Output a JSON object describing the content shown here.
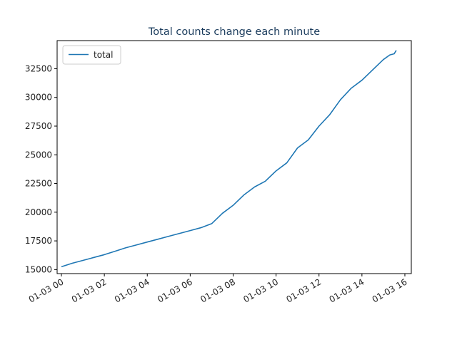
{
  "chart_data": {
    "type": "line",
    "title": "Total counts change each minute",
    "xlabel": "",
    "ylabel": "",
    "legend_position": "upper-left",
    "grid": false,
    "x_tick_labels": [
      "01-03 00",
      "01-03 02",
      "01-03 04",
      "01-03 06",
      "01-03 08",
      "01-03 10",
      "01-03 12",
      "01-03 14",
      "01-03 16"
    ],
    "x_tick_hours": [
      0,
      2,
      4,
      6,
      8,
      10,
      12,
      14,
      16
    ],
    "y_ticks": [
      15000,
      17500,
      20000,
      22500,
      25000,
      27500,
      30000,
      32500
    ],
    "y_tick_labels": [
      "15000",
      "17500",
      "20000",
      "22500",
      "25000",
      "27500",
      "30000",
      "32500"
    ],
    "xlim_hours": [
      -0.2,
      16.3
    ],
    "ylim": [
      14650,
      34950
    ],
    "series": [
      {
        "name": "total",
        "color": "#1f77b4",
        "x_hours": [
          0,
          0.5,
          1,
          1.5,
          2,
          2.5,
          3,
          3.5,
          4,
          4.5,
          5,
          5.5,
          6,
          6.5,
          7,
          7.5,
          8,
          8.5,
          9,
          9.5,
          10,
          10.5,
          11,
          11.5,
          12,
          12.5,
          13,
          13.5,
          14,
          14.5,
          15,
          15.3,
          15.5,
          15.6
        ],
        "values": [
          15250,
          15550,
          15800,
          16050,
          16300,
          16600,
          16900,
          17150,
          17400,
          17650,
          17900,
          18150,
          18400,
          18650,
          19000,
          19900,
          20600,
          21500,
          22200,
          22700,
          23600,
          24300,
          25600,
          26300,
          27500,
          28500,
          29800,
          30800,
          31500,
          32400,
          33300,
          33700,
          33800,
          34100
        ]
      }
    ]
  }
}
